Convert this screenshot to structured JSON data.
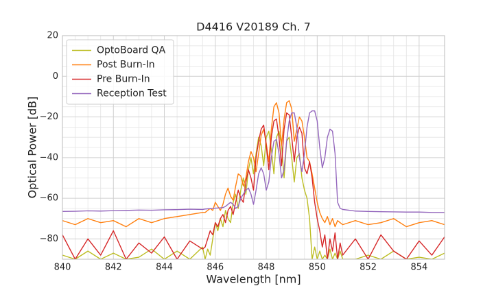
{
  "chart_data": {
    "type": "line",
    "title": "D4416 V20189 Ch. 7",
    "x_label": "Wavelength [nm]",
    "y_label": "Optical Power [dB]",
    "xlim": [
      840,
      855
    ],
    "ylim": [
      -90,
      20
    ],
    "xticks": [
      840,
      842,
      844,
      846,
      848,
      850,
      852,
      854
    ],
    "yticks": [
      {
        "value": -80,
        "label": "−80"
      },
      {
        "value": -60,
        "label": "−60"
      },
      {
        "value": -40,
        "label": "−40"
      },
      {
        "value": -20,
        "label": "−20"
      },
      0,
      20
    ],
    "grid": true,
    "legend": "upper left",
    "x": [
      840,
      840.5,
      841,
      841.5,
      842,
      842.5,
      843,
      843.5,
      844,
      844.5,
      845,
      845.5,
      845.6,
      845.7,
      845.8,
      845.9,
      846,
      846.1,
      846.2,
      846.3,
      846.4,
      846.5,
      846.6,
      846.7,
      846.8,
      846.9,
      847,
      847.1,
      847.2,
      847.3,
      847.4,
      847.5,
      847.6,
      847.7,
      847.8,
      847.9,
      848,
      848.1,
      848.2,
      848.3,
      848.4,
      848.5,
      848.6,
      848.7,
      848.8,
      848.9,
      849,
      849.1,
      849.2,
      849.3,
      849.4,
      849.5,
      849.6,
      849.7,
      849.8,
      849.9,
      850,
      850.1,
      850.2,
      850.3,
      850.4,
      850.5,
      850.6,
      850.7,
      850.8,
      850.9,
      851,
      851.5,
      852,
      852.5,
      853,
      853.5,
      854,
      854.5,
      855
    ],
    "series": [
      {
        "name": "OptoBoard QA",
        "color": "#bcbd22",
        "values": [
          -88,
          -90,
          -86,
          -90,
          -87,
          -90,
          -89,
          -85,
          -90,
          -86,
          -90,
          -84,
          -90,
          -85,
          -88,
          -80,
          -72,
          -76,
          -70,
          -74,
          -66,
          -70,
          -72,
          -62,
          -58,
          -65,
          -56,
          -50,
          -58,
          -46,
          -40,
          -48,
          -38,
          -30,
          -34,
          -44,
          -30,
          -27,
          -36,
          -48,
          -30,
          -27,
          -34,
          -50,
          -32,
          -30,
          -40,
          -52,
          -40,
          -38,
          -50,
          -56,
          -60,
          -70,
          -90,
          -84,
          -90,
          -86,
          -90,
          -88,
          -90,
          -85,
          -90,
          -87,
          -90,
          -86,
          -90,
          -90,
          -88,
          -90,
          -86,
          -90,
          -89,
          -90,
          -87
        ]
      },
      {
        "name": "Post Burn-In",
        "color": "#ff7f0e",
        "values": [
          -71,
          -73,
          -70,
          -72,
          -71,
          -74,
          -70,
          -72,
          -70,
          -69,
          -68,
          -67,
          -67,
          -66,
          -65,
          -66,
          -62,
          -64,
          -66,
          -63,
          -58,
          -55,
          -59,
          -61,
          -54,
          -48,
          -49,
          -54,
          -50,
          -42,
          -37,
          -40,
          -47,
          -38,
          -29,
          -26,
          -33,
          -42,
          -26,
          -15,
          -13,
          -18,
          -34,
          -21,
          -13,
          -12,
          -16,
          -32,
          -26,
          -20,
          -22,
          -30,
          -40,
          -42,
          -48,
          -55,
          -62,
          -67,
          -70,
          -72,
          -69,
          -73,
          -70,
          -74,
          -71,
          -72,
          -73,
          -71,
          -73,
          -72,
          -70,
          -74,
          -72,
          -71,
          -73
        ]
      },
      {
        "name": "Pre Burn-In",
        "color": "#d62728",
        "values": [
          -78,
          -90,
          -80,
          -88,
          -76,
          -90,
          -82,
          -87,
          -79,
          -90,
          -81,
          -85,
          -84,
          -80,
          -76,
          -78,
          -72,
          -74,
          -70,
          -68,
          -72,
          -66,
          -64,
          -68,
          -62,
          -56,
          -60,
          -62,
          -52,
          -46,
          -50,
          -56,
          -40,
          -32,
          -26,
          -24,
          -34,
          -46,
          -30,
          -22,
          -21,
          -30,
          -44,
          -26,
          -18,
          -19,
          -30,
          -42,
          -30,
          -25,
          -28,
          -45,
          -48,
          -42,
          -50,
          -62,
          -70,
          -76,
          -84,
          -78,
          -90,
          -80,
          -86,
          -77,
          -90,
          -82,
          -88,
          -80,
          -90,
          -78,
          -86,
          -90,
          -81,
          -88,
          -79
        ]
      },
      {
        "name": "Reception Test",
        "color": "#9467bd",
        "values": [
          -66.5,
          -66.4,
          -66.2,
          -66.3,
          -66.1,
          -66,
          -65.8,
          -65.9,
          -65.7,
          -65.6,
          -65.4,
          -65.5,
          -65.3,
          -65.2,
          -65.1,
          -65,
          -64.9,
          -64.8,
          -64.7,
          -64.6,
          -64,
          -63,
          -62,
          -63,
          -65,
          -64,
          -60,
          -58,
          -56,
          -55,
          -58,
          -63,
          -56,
          -48,
          -45,
          -48,
          -56,
          -52,
          -40,
          -32,
          -31,
          -38,
          -50,
          -46,
          -32,
          -22,
          -18,
          -18,
          -25,
          -40,
          -47,
          -38,
          -25,
          -18,
          -17,
          -17,
          -22,
          -35,
          -45,
          -40,
          -30,
          -26,
          -27,
          -38,
          -62,
          -65,
          -65.5,
          -66.3,
          -66.5,
          -66.6,
          -66.7,
          -66.8,
          -66.8,
          -67,
          -67
        ]
      }
    ]
  }
}
